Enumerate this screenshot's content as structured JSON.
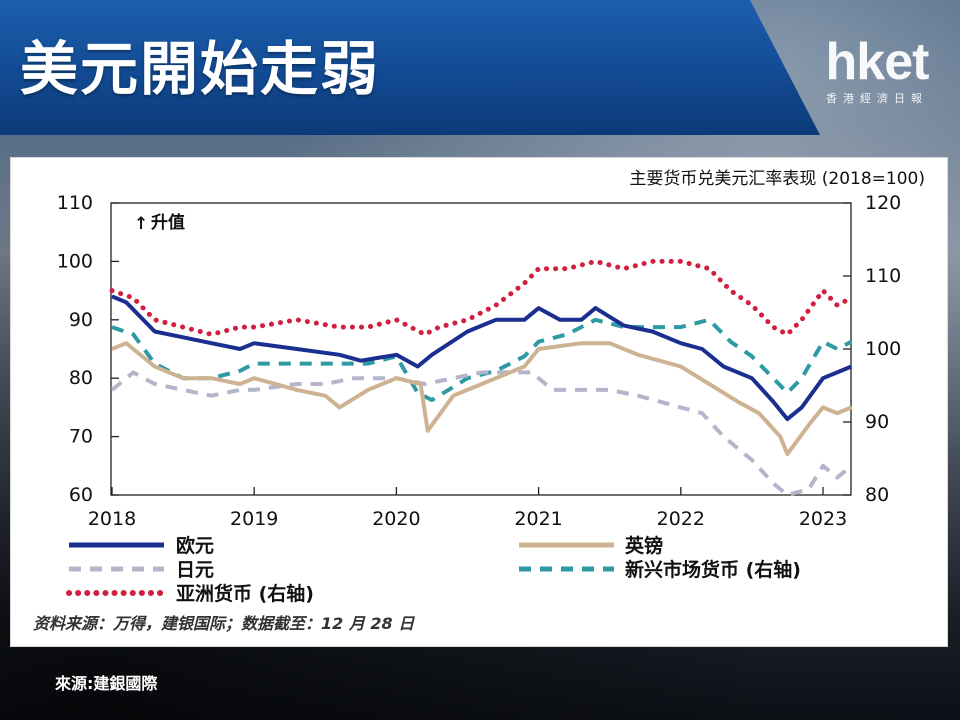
{
  "header": {
    "title": "美元開始走弱",
    "logo_text": "hket",
    "logo_subtext": "香港經濟日報"
  },
  "chart_data": {
    "type": "line",
    "title": "主要货币兑美元汇率表现 (2018=100)",
    "annotation": "升值",
    "x_ticks": [
      "2018",
      "2019",
      "2020",
      "2021",
      "2022",
      "2023"
    ],
    "left_axis": {
      "ticks": [
        "110",
        "100",
        "90",
        "80",
        "70",
        "60"
      ],
      "range": [
        60,
        110
      ]
    },
    "right_axis": {
      "ticks": [
        "120",
        "110",
        "100",
        "90",
        "80"
      ],
      "range": [
        80,
        120
      ]
    },
    "xlim": [
      2018.0,
      2023.0
    ],
    "grid": false,
    "series": [
      {
        "name": "欧元",
        "axis": "left",
        "color": "#1a2f8f",
        "style": "solid",
        "x": [
          2018.0,
          2018.1,
          2018.3,
          2018.5,
          2018.7,
          2018.9,
          2019.0,
          2019.3,
          2019.6,
          2019.75,
          2020.0,
          2020.15,
          2020.25,
          2020.5,
          2020.7,
          2020.9,
          2021.0,
          2021.15,
          2021.3,
          2021.4,
          2021.6,
          2021.8,
          2022.0,
          2022.15,
          2022.3,
          2022.5,
          2022.65,
          2022.75,
          2022.85,
          2023.0,
          2023.1,
          2023.2
        ],
        "values": [
          94,
          93,
          88,
          87,
          86,
          85,
          86,
          85,
          84,
          83,
          84,
          82,
          84,
          88,
          90,
          90,
          92,
          90,
          90,
          92,
          89,
          88,
          86,
          85,
          82,
          80,
          76,
          73,
          75,
          80,
          81,
          82
        ]
      },
      {
        "name": "英镑",
        "axis": "left",
        "color": "#cdb392",
        "style": "solid",
        "x": [
          2018.0,
          2018.1,
          2018.3,
          2018.5,
          2018.7,
          2018.9,
          2019.0,
          2019.3,
          2019.5,
          2019.6,
          2019.8,
          2020.0,
          2020.17,
          2020.22,
          2020.4,
          2020.6,
          2020.9,
          2021.0,
          2021.3,
          2021.5,
          2021.7,
          2022.0,
          2022.2,
          2022.4,
          2022.55,
          2022.7,
          2022.75,
          2022.9,
          2023.0,
          2023.1,
          2023.2
        ],
        "values": [
          85,
          86,
          82,
          80,
          80,
          79,
          80,
          78,
          77,
          75,
          78,
          80,
          79,
          71,
          77,
          79,
          82,
          85,
          86,
          86,
          84,
          82,
          79,
          76,
          74,
          70,
          67,
          72,
          75,
          74,
          75
        ]
      },
      {
        "name": "日元",
        "axis": "left",
        "color": "#b4b5cb",
        "style": "dashed",
        "x": [
          2018.0,
          2018.15,
          2018.3,
          2018.5,
          2018.7,
          2018.9,
          2019.0,
          2019.3,
          2019.5,
          2019.7,
          2020.0,
          2020.2,
          2020.4,
          2020.6,
          2020.8,
          2020.95,
          2021.1,
          2021.3,
          2021.5,
          2021.7,
          2022.0,
          2022.15,
          2022.3,
          2022.5,
          2022.65,
          2022.75,
          2022.9,
          2023.0,
          2023.1,
          2023.2
        ],
        "values": [
          78,
          81,
          79,
          78,
          77,
          78,
          78,
          79,
          79,
          80,
          80,
          79,
          80,
          81,
          81,
          81,
          78,
          78,
          78,
          77,
          75,
          74,
          70,
          66,
          62,
          60,
          61,
          65,
          63,
          65
        ]
      },
      {
        "name": "新兴市场货币 (右轴)",
        "axis": "right",
        "color": "#2e9aa4",
        "style": "dashed",
        "x": [
          2018.0,
          2018.15,
          2018.3,
          2018.5,
          2018.7,
          2018.9,
          2019.0,
          2019.3,
          2019.6,
          2019.8,
          2020.0,
          2020.15,
          2020.25,
          2020.5,
          2020.7,
          2020.9,
          2021.0,
          2021.2,
          2021.4,
          2021.6,
          2021.8,
          2022.0,
          2022.2,
          2022.35,
          2022.5,
          2022.65,
          2022.75,
          2022.85,
          2023.0,
          2023.1,
          2023.2
        ],
        "values": [
          103,
          102,
          98,
          96,
          96,
          97,
          98,
          98,
          98,
          98,
          99,
          94,
          93,
          96,
          97,
          99,
          101,
          102,
          104,
          103,
          103,
          103,
          104,
          101,
          99,
          96,
          94,
          96,
          101,
          100,
          101
        ]
      },
      {
        "name": "亚洲货币 (右轴)",
        "axis": "right",
        "color": "#d11f3f",
        "style": "dotted",
        "x": [
          2018.0,
          2018.15,
          2018.3,
          2018.5,
          2018.7,
          2018.9,
          2019.0,
          2019.3,
          2019.6,
          2019.8,
          2020.0,
          2020.2,
          2020.3,
          2020.5,
          2020.7,
          2020.9,
          2021.0,
          2021.2,
          2021.4,
          2021.6,
          2021.8,
          2022.0,
          2022.2,
          2022.35,
          2022.5,
          2022.65,
          2022.75,
          2022.85,
          2023.0,
          2023.1,
          2023.2
        ],
        "values": [
          108,
          107,
          104,
          103,
          102,
          103,
          103,
          104,
          103,
          103,
          104,
          102,
          103,
          104,
          106,
          109,
          111,
          111,
          112,
          111,
          112,
          112,
          111,
          108,
          106,
          103,
          102,
          104,
          108,
          106,
          107
        ]
      }
    ],
    "legend": {
      "position": "bottom"
    },
    "note": "资料来源：万得，建银国际；数据截至：12 月 28 日"
  },
  "footer": {
    "source": "來源:建銀國際"
  }
}
